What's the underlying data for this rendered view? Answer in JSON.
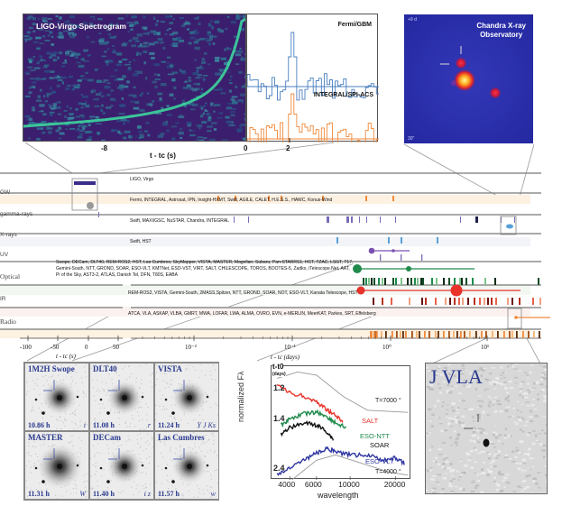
{
  "spectrogram": {
    "title": "LIGO-Virgo Spectrogram",
    "xlabel": "t - tc (s)",
    "ticks": [
      "-8",
      "0",
      "2"
    ]
  },
  "gamma_lightcurves": {
    "series": [
      {
        "name": "Fermi/GBM",
        "color": "#4a7fc1"
      },
      {
        "name": "INTEGRAL/SPI-ACS",
        "color": "#f08a3c"
      }
    ]
  },
  "chandra": {
    "title_line1": "Chandra X-ray",
    "title_line2": "Observatory",
    "corner_label": "+9 d",
    "scale_label": "30\""
  },
  "timeline": {
    "rows": [
      {
        "label": "GW",
        "instruments": "LIGO, Virgo",
        "color": "#f08a3c"
      },
      {
        "label": "gamma-rays",
        "instruments": "Fermi, INTEGRAL, Astrosat, IPN, Insight-HXMT, Swift, AGILE, CALET, H.E.S.S., HAWC, Konus-Wind",
        "color": "#7a6bb8"
      },
      {
        "label": "X-rays",
        "instruments": "Swift, MAXI/GSC, NuSTAR, Chandra, INTEGRAL",
        "color": "#5aa0d8"
      },
      {
        "label": "UV",
        "instruments": "Swift, HST",
        "color": "#7a4fb0"
      },
      {
        "label": "Optical",
        "instruments": "Swope, DECam, DLT40, REM-ROS2, HST, Las Cumbres, SkyMapper, VISTA, MASTER, Magellan, Subaru, Pan-STARRS1, HCT, TZAC, LSGT, T17, Gemini-South, NTT, GROND, SOAR, ESO-VLT, KMTNet, ESO-VST, VIRT, SALT, CHILESCOPE, TOROS, BOOTES-5, Zadko, iTelescope.Net, AAT, Pi of the Sky, AST3-2, ATLAS, Danish Tel, DFN, T80S, EABA",
        "color": "#1f8a4c"
      },
      {
        "label": "IR",
        "instruments": "REM-ROS2, VISTA, Gemini-South, 2MASS,Spitzer, NTT, GROND, SOAR, NOT, ESO-VLT, Kanata Telescope, HST",
        "color": "#e8322a"
      },
      {
        "label": "Radio",
        "instruments": "ATCA, VLA, ASKAP, VLBA, GMRT, MWA, LOFAR, LWA, ALMA, OVRO, EVN, e-MERLIN, MeerKAT, Parkes, SRT, Effelsberg",
        "color": "#f08a3c"
      }
    ],
    "left_axis": {
      "label": "t - tc (s)",
      "ticks": [
        "-100",
        "-50",
        "0",
        "50"
      ]
    },
    "right_axis": {
      "label": "t - tc (days)",
      "ticks": [
        "10⁻²",
        "10⁻¹",
        "10⁰",
        "10¹"
      ]
    }
  },
  "optical_cutouts": [
    {
      "telescope": "1M2H  Swope",
      "time": "10.86 h",
      "band": "i"
    },
    {
      "telescope": "DLT40",
      "time": "11.08 h",
      "band": "r"
    },
    {
      "telescope": "VISTA",
      "time": "11.24 h",
      "band": "Y J Ks"
    },
    {
      "telescope": "MASTER",
      "time": "11.31 h",
      "band": "W"
    },
    {
      "telescope": "DECam",
      "time": "11.40 h",
      "band": "i z"
    },
    {
      "telescope": "Las Cumbres",
      "time": "11.57 h",
      "band": "w"
    }
  ],
  "chart_data": {
    "type": "line",
    "title": "",
    "xlabel": "wavelength",
    "ylabel": "normalized Fλ",
    "corner_label_line1": "t-t0",
    "corner_label_line2": "(days)",
    "x_ticks": [
      "4000",
      "6000",
      "10000",
      "20000"
    ],
    "y_ticks": [
      "1.2",
      "1.4",
      "2.4"
    ],
    "xlim": [
      3200,
      24000
    ],
    "series": [
      {
        "name": "SALT",
        "epoch_days": 1.2,
        "color": "#e8322a",
        "x": [
          3300,
          4000,
          5000,
          6000,
          7000,
          8000,
          9000
        ],
        "y": [
          0.15,
          0.22,
          0.25,
          0.3,
          0.37,
          0.43,
          0.49
        ]
      },
      {
        "name": "ESO-NTT",
        "epoch_days": 1.4,
        "color": "#1f8a4c",
        "x": [
          3500,
          4000,
          5000,
          6000,
          7000,
          8000,
          9500
        ],
        "y": [
          0.52,
          0.46,
          0.41,
          0.4,
          0.44,
          0.5,
          0.55
        ]
      },
      {
        "name": "SOAR",
        "epoch_days": 1.4,
        "color": "#111111",
        "x": [
          3500,
          4000,
          5000,
          6000,
          7000,
          7800
        ],
        "y": [
          0.6,
          0.54,
          0.5,
          0.52,
          0.58,
          0.66
        ]
      },
      {
        "name": "ESO-VLT",
        "epoch_days": 2.4,
        "color": "#2e35a0",
        "x": [
          3300,
          4000,
          5000,
          6000,
          7000,
          8000,
          10000,
          13000,
          16000,
          20000,
          23000
        ],
        "y": [
          0.98,
          0.92,
          0.84,
          0.78,
          0.74,
          0.77,
          0.8,
          0.8,
          0.85,
          0.83,
          0.88
        ]
      }
    ],
    "blackbody_curves": [
      {
        "label": "T=7000 °",
        "color": "#999999"
      },
      {
        "label": "T=4000 °",
        "color": "#999999"
      }
    ]
  },
  "vla": {
    "title": "J VLA"
  }
}
